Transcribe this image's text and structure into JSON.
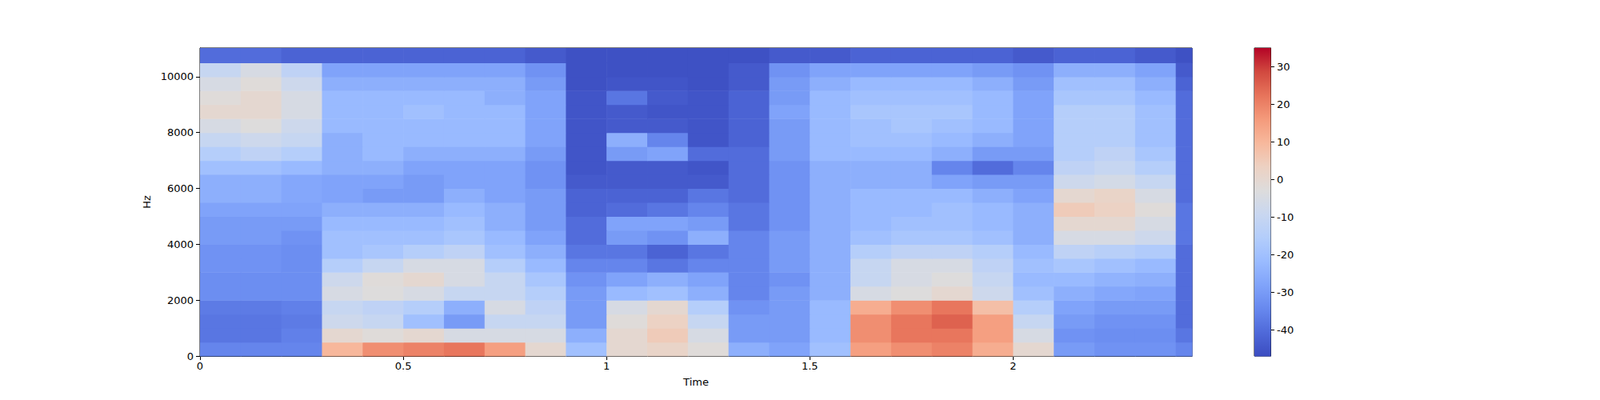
{
  "chart_data": {
    "type": "heatmap",
    "x_label": "Time",
    "y_label": "Hz",
    "xlim": [
      0,
      2.44
    ],
    "xticks": [
      0,
      0.5,
      1,
      1.5,
      2
    ],
    "ylim": [
      0,
      11025
    ],
    "yticks": [
      0,
      2000,
      4000,
      6000,
      8000,
      10000
    ],
    "x_edges": [
      0,
      0.1,
      0.2,
      0.3,
      0.4,
      0.5,
      0.6,
      0.7,
      0.8,
      0.9,
      1.0,
      1.1,
      1.2,
      1.3,
      1.4,
      1.5,
      1.6,
      1.7,
      1.8,
      1.9,
      2.0,
      2.1,
      2.2,
      2.3,
      2.4,
      2.44
    ],
    "y_edges": [
      0,
      500,
      1000,
      1500,
      2000,
      2500,
      3000,
      3500,
      4000,
      4500,
      5000,
      5500,
      6000,
      6500,
      7000,
      7500,
      8000,
      8500,
      9000,
      9500,
      10000,
      10500,
      11025
    ],
    "cells": [
      [
        -35,
        -35,
        -35,
        10,
        18,
        20,
        22,
        15,
        0,
        -20,
        0,
        2,
        -2,
        -25,
        -28,
        -20,
        15,
        18,
        20,
        12,
        0,
        -30,
        -32,
        -32,
        -35
      ],
      [
        -38,
        -38,
        -36,
        0,
        -2,
        0,
        -5,
        -5,
        -5,
        -25,
        0,
        5,
        -5,
        -30,
        -30,
        -22,
        18,
        22,
        22,
        15,
        -5,
        -32,
        -33,
        -33,
        -38
      ],
      [
        -38,
        -38,
        -37,
        -8,
        -10,
        -20,
        -30,
        -10,
        -10,
        -30,
        -2,
        3,
        -10,
        -30,
        -30,
        -22,
        18,
        22,
        25,
        15,
        -10,
        -30,
        -32,
        -32,
        -40
      ],
      [
        -37,
        -37,
        -36,
        -10,
        -12,
        -15,
        -25,
        -5,
        -12,
        -30,
        -5,
        0,
        -15,
        -32,
        -30,
        -22,
        12,
        18,
        22,
        8,
        -15,
        -28,
        -30,
        -30,
        -40
      ],
      [
        -33,
        -33,
        -33,
        -5,
        -3,
        -5,
        -10,
        -10,
        -15,
        -30,
        -22,
        -20,
        -25,
        -35,
        -30,
        -25,
        -5,
        -3,
        0,
        -8,
        -20,
        -25,
        -27,
        -28,
        -40
      ],
      [
        -33,
        -33,
        -33,
        -8,
        -2,
        0,
        -5,
        -10,
        -18,
        -32,
        -28,
        -25,
        -28,
        -35,
        -32,
        -25,
        -10,
        -5,
        -3,
        -10,
        -22,
        -22,
        -24,
        -25,
        -40
      ],
      [
        -32,
        -32,
        -33,
        -15,
        -10,
        -5,
        -5,
        -15,
        -22,
        -35,
        -35,
        -38,
        -35,
        -35,
        -30,
        -25,
        -10,
        -5,
        -5,
        -12,
        -20,
        -18,
        -20,
        -22,
        -40
      ],
      [
        -32,
        -32,
        -33,
        -20,
        -18,
        -15,
        -12,
        -20,
        -25,
        -38,
        -38,
        -42,
        -38,
        -35,
        -30,
        -25,
        -15,
        -12,
        -12,
        -15,
        -22,
        -12,
        -14,
        -16,
        -40
      ],
      [
        -30,
        -30,
        -32,
        -20,
        -20,
        -20,
        -18,
        -22,
        -28,
        -40,
        -30,
        -32,
        -25,
        -35,
        -30,
        -25,
        -20,
        -18,
        -18,
        -20,
        -25,
        -5,
        -5,
        -8,
        -38
      ],
      [
        -30,
        -30,
        -30,
        -22,
        -22,
        -22,
        -20,
        -25,
        -30,
        -40,
        -28,
        -28,
        -30,
        -38,
        -32,
        -25,
        -22,
        -20,
        -20,
        -22,
        -25,
        0,
        0,
        -5,
        -38
      ],
      [
        -28,
        -28,
        -28,
        -25,
        -25,
        -25,
        -22,
        -25,
        -30,
        -42,
        -40,
        -38,
        -35,
        -38,
        -32,
        -25,
        -22,
        -22,
        -20,
        -22,
        -25,
        5,
        3,
        -2,
        -38
      ],
      [
        -25,
        -25,
        -27,
        -28,
        -30,
        -30,
        -25,
        -28,
        -30,
        -42,
        -42,
        -42,
        -38,
        -40,
        -32,
        -25,
        -22,
        -22,
        -22,
        -25,
        -28,
        0,
        2,
        -5,
        -40
      ],
      [
        -25,
        -25,
        -27,
        -28,
        -28,
        -30,
        -28,
        -28,
        -32,
        -44,
        -44,
        -44,
        -44,
        -40,
        -32,
        -25,
        -25,
        -25,
        -28,
        -30,
        -30,
        -8,
        -6,
        -10,
        -40
      ],
      [
        -20,
        -20,
        -22,
        -25,
        -25,
        -28,
        -28,
        -28,
        -32,
        -45,
        -44,
        -44,
        -45,
        -40,
        -32,
        -25,
        -25,
        -25,
        -35,
        -40,
        -35,
        -12,
        -10,
        -15,
        -40
      ],
      [
        -15,
        -12,
        -15,
        -25,
        -22,
        -25,
        -25,
        -25,
        -30,
        -45,
        -30,
        -28,
        -40,
        -40,
        -30,
        -22,
        -22,
        -22,
        -25,
        -30,
        -30,
        -15,
        -12,
        -18,
        -40
      ],
      [
        -10,
        -8,
        -10,
        -25,
        -22,
        -22,
        -22,
        -22,
        -28,
        -45,
        -25,
        -35,
        -45,
        -42,
        -30,
        -22,
        -20,
        -20,
        -22,
        -25,
        -28,
        -15,
        -15,
        -20,
        -40
      ],
      [
        -5,
        -3,
        -8,
        -22,
        -22,
        -22,
        -22,
        -22,
        -28,
        -45,
        -44,
        -44,
        -45,
        -42,
        -30,
        -22,
        -20,
        -18,
        -20,
        -22,
        -28,
        -15,
        -15,
        -20,
        -40
      ],
      [
        0,
        0,
        -5,
        -22,
        -22,
        -20,
        -22,
        -22,
        -28,
        -45,
        -44,
        -45,
        -45,
        -42,
        -28,
        -22,
        -18,
        -18,
        -18,
        -22,
        -28,
        -15,
        -15,
        -20,
        -40
      ],
      [
        -2,
        0,
        -5,
        -22,
        -22,
        -22,
        -22,
        -25,
        -28,
        -45,
        -38,
        -44,
        -45,
        -42,
        -30,
        -22,
        -20,
        -20,
        -20,
        -22,
        -28,
        -18,
        -18,
        -22,
        -40
      ],
      [
        -5,
        -2,
        -8,
        -25,
        -25,
        -25,
        -25,
        -25,
        -30,
        -46,
        -45,
        -45,
        -46,
        -44,
        -30,
        -25,
        -22,
        -22,
        -22,
        -25,
        -30,
        -20,
        -20,
        -25,
        -42
      ],
      [
        -10,
        -5,
        -12,
        -28,
        -28,
        -28,
        -28,
        -28,
        -32,
        -46,
        -46,
        -46,
        -46,
        -44,
        -32,
        -28,
        -28,
        -28,
        -28,
        -30,
        -32,
        -25,
        -25,
        -28,
        -44
      ],
      [
        -40,
        -40,
        -42,
        -42,
        -42,
        -42,
        -42,
        -42,
        -44,
        -46,
        -46,
        -46,
        -46,
        -46,
        -44,
        -44,
        -42,
        -42,
        -42,
        -42,
        -44,
        -42,
        -42,
        -44,
        -46
      ]
    ],
    "colorbar": {
      "range": [
        -47,
        35
      ],
      "ticks": [
        -40,
        -30,
        -20,
        -10,
        0,
        10,
        20,
        30
      ]
    }
  }
}
